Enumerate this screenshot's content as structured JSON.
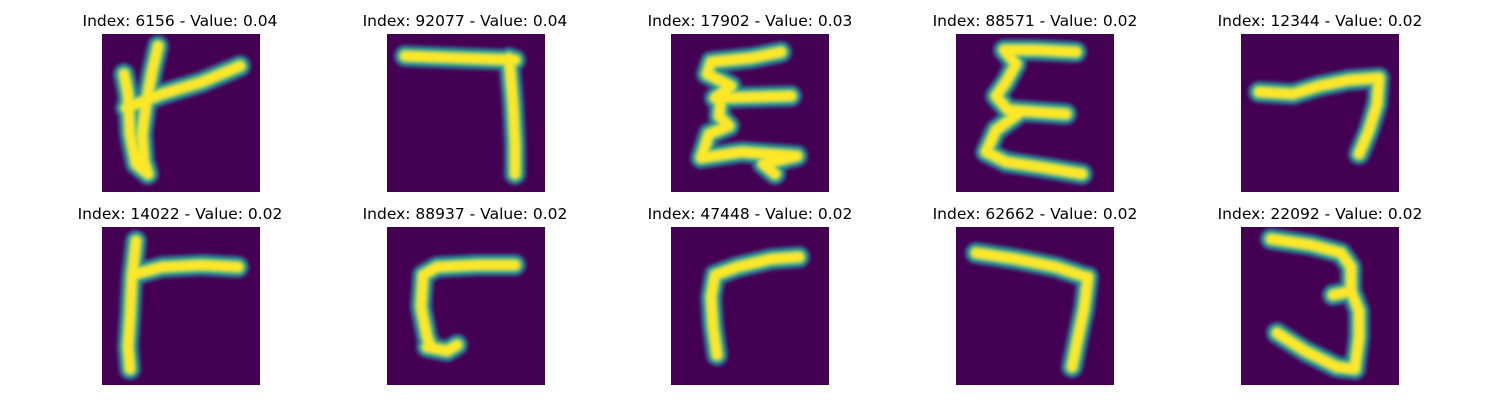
{
  "figure": {
    "colormap": {
      "background": "#440154",
      "glow_outer": "#31688e",
      "glow_mid": "#21908d",
      "glow_inner": "#5ec962",
      "stroke_core": "#fde725"
    },
    "panels": [
      {
        "title": "Index: 6156 - Value: 0.04",
        "index": 6156,
        "value": 0.04,
        "strokes": [
          "M 56 12 L 50 38 L 44 70 L 40 100 L 42 128 L 46 140 L 34 130 L 28 100 L 26 60 L 22 40",
          "M 24 74 L 60 60 L 100 48 L 138 32"
        ]
      },
      {
        "title": "Index: 92077 - Value: 0.04",
        "index": 92077,
        "value": 0.04,
        "strokes": [
          "M 18 22 L 70 24 L 128 26",
          "M 122 24 L 126 70 L 128 110 L 128 140"
        ]
      },
      {
        "title": "Index: 17902 - Value: 0.03",
        "index": 17902,
        "value": 0.03,
        "strokes": [
          "M 110 18 L 80 24 L 40 28 L 36 40 L 60 52 L 44 64 L 120 62",
          "M 50 64 L 48 82 L 58 92 L 38 100 L 30 124 L 70 118 L 126 122 L 92 130 L 104 140"
        ]
      },
      {
        "title": "Index: 88571 - Value: 0.02",
        "index": 88571,
        "value": 0.02,
        "strokes": [
          "M 120 18 L 80 16 L 48 16 L 60 30 L 50 48 L 40 62 L 52 76 L 110 80",
          "M 62 80 L 40 96 L 30 118 L 50 128 L 90 134 L 126 140"
        ]
      },
      {
        "title": "Index: 12344 - Value: 0.02",
        "index": 12344,
        "value": 0.02,
        "strokes": [
          "M 18 58 L 52 60 L 78 52 L 108 46 L 138 44",
          "M 138 44 L 136 70 L 128 96 L 118 120"
        ]
      },
      {
        "title": "Index: 14022 - Value: 0.02",
        "index": 14022,
        "value": 0.02,
        "strokes": [
          "M 34 14 L 30 50 L 28 90 L 26 120 L 28 142",
          "M 30 48 L 60 40 L 100 38 L 136 40"
        ]
      },
      {
        "title": "Index: 88937 - Value: 0.02",
        "index": 88937,
        "value": 0.02,
        "strokes": [
          "M 128 38 L 90 38 L 50 40 L 36 48 L 34 80 L 40 110 L 44 120",
          "M 40 120 L 60 124 L 70 118"
        ]
      },
      {
        "title": "Index: 47448 - Value: 0.02",
        "index": 47448,
        "value": 0.02,
        "strokes": [
          "M 128 30 L 100 32 L 66 40 L 44 48 L 40 70 L 42 100 L 46 128"
        ]
      },
      {
        "title": "Index: 62662 - Value: 0.02",
        "index": 62662,
        "value": 0.02,
        "strokes": [
          "M 20 26 L 60 32 L 100 40 L 130 50",
          "M 132 50 L 128 82 L 122 110 L 116 140"
        ]
      },
      {
        "title": "Index: 22092 - Value: 0.02",
        "index": 22092,
        "value": 0.02,
        "strokes": [
          "M 30 12 L 70 18 L 100 26 L 110 40 L 110 64 L 92 68",
          "M 110 64 L 118 84 L 118 110 L 114 140",
          "M 36 106 L 64 124 L 96 140 L 114 142"
        ]
      }
    ]
  }
}
